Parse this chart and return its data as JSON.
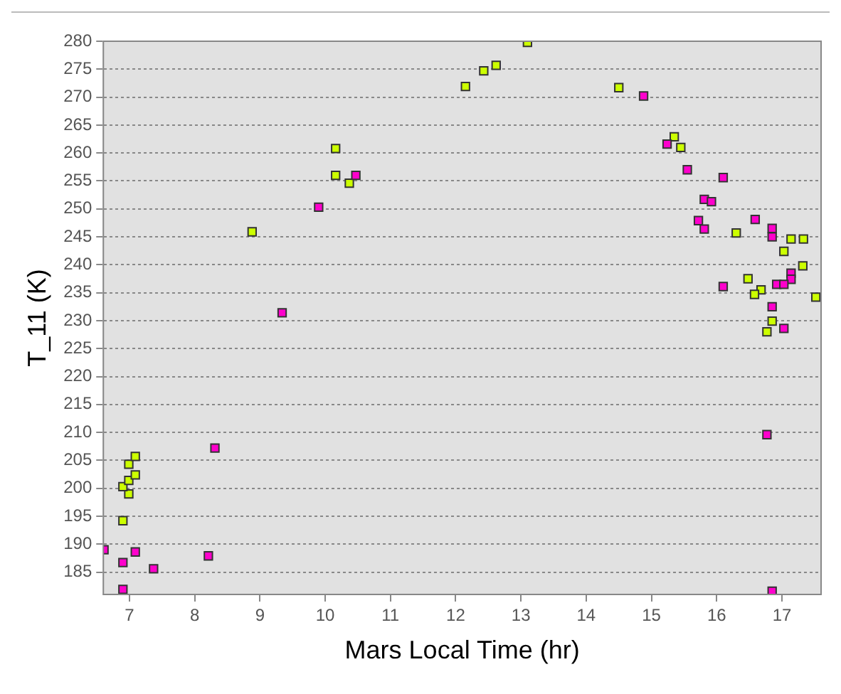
{
  "chart_data": {
    "type": "scatter",
    "xlabel": "Mars Local Time (hr)",
    "ylabel": "T_11 (K)",
    "xlim": [
      6.6,
      17.6
    ],
    "ylim": [
      181,
      280
    ],
    "xticks": [
      7,
      8,
      9,
      10,
      11,
      12,
      13,
      14,
      15,
      16,
      17
    ],
    "yticks": [
      185,
      190,
      195,
      200,
      205,
      210,
      215,
      220,
      225,
      230,
      235,
      240,
      245,
      250,
      255,
      260,
      265,
      270,
      275,
      280
    ],
    "grid": "y",
    "marker": "square",
    "legend": false,
    "series": [
      {
        "color": "#ff00cc",
        "x": [
          6.61,
          6.9,
          6.9,
          7.09,
          7.37,
          8.21,
          8.31,
          9.34,
          9.9,
          10.47,
          14.88,
          15.24,
          15.55,
          16.1,
          15.81,
          15.92,
          15.72,
          15.81,
          16.59,
          16.85,
          16.85,
          17.14,
          17.14,
          16.92,
          17.03,
          16.1,
          16.85,
          17.03,
          16.77,
          16.85
        ],
        "values": [
          189.0,
          186.7,
          181.9,
          188.6,
          185.6,
          187.9,
          207.2,
          231.4,
          250.3,
          256.0,
          270.2,
          261.6,
          257.0,
          255.6,
          251.7,
          251.3,
          247.9,
          246.4,
          248.1,
          246.5,
          245.0,
          238.5,
          237.4,
          236.5,
          236.5,
          236.1,
          232.5,
          228.6,
          209.6,
          181.6
        ]
      },
      {
        "color": "#ccff00",
        "x": [
          6.9,
          6.99,
          6.9,
          6.99,
          7.09,
          6.99,
          7.09,
          8.88,
          10.16,
          10.16,
          10.37,
          12.15,
          12.43,
          12.62,
          13.1,
          14.5,
          15.35,
          15.45,
          16.3,
          17.14,
          17.33,
          17.03,
          17.32,
          16.48,
          16.68,
          16.58,
          17.52,
          16.85,
          16.77
        ],
        "values": [
          194.2,
          199.0,
          200.3,
          201.4,
          202.4,
          204.3,
          205.7,
          245.9,
          260.8,
          256.0,
          254.6,
          271.9,
          274.7,
          275.7,
          279.8,
          271.7,
          262.9,
          261.0,
          245.7,
          244.6,
          244.6,
          242.4,
          239.8,
          237.5,
          235.5,
          234.7,
          234.2,
          229.9,
          228.0
        ]
      }
    ]
  }
}
